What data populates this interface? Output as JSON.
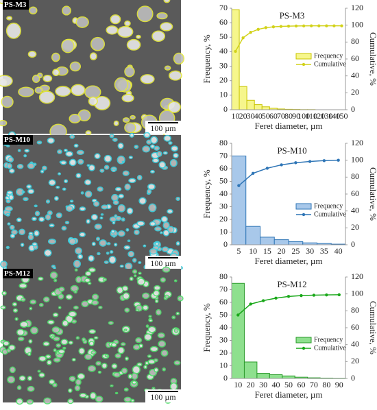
{
  "images": [
    {
      "label": "PS-M3",
      "scale": "100 µm",
      "color": "#e6ea3a"
    },
    {
      "label": "PS-M10",
      "scale": "100 µm",
      "color": "#3ad0e0"
    },
    {
      "label": "PS-M12",
      "scale": "100 µm",
      "color": "#4ee06a"
    }
  ],
  "chart_data": [
    {
      "type": "bar",
      "title": "PS-M3",
      "x_label": "Feret diameter, µm",
      "y_label": "Frequency, %",
      "y2_label": "Cumulative, %",
      "categories": [
        "10",
        "20",
        "30",
        "40",
        "50",
        "60",
        "70",
        "80",
        "90",
        "100",
        "110",
        "120",
        "130",
        "140",
        "150"
      ],
      "series": [
        {
          "name": "Frequency",
          "color": "#f6f68c",
          "edge": "#c8c400",
          "values": [
            69,
            16,
            6.5,
            3.5,
            2,
            1,
            0.5,
            0.3,
            0.2,
            0.1,
            0.1,
            0,
            0,
            0,
            0
          ]
        },
        {
          "name": "Cumulative",
          "color": "#d2d21a",
          "axis": "y2",
          "values": [
            69,
            85,
            91.5,
            95,
            97,
            98,
            98.5,
            98.8,
            99,
            99.1,
            99.2,
            99.2,
            99.2,
            99.2,
            99.2
          ]
        }
      ],
      "ylim": [
        0,
        70
      ],
      "yticks": [
        0,
        10,
        20,
        30,
        40,
        50,
        60,
        70
      ],
      "y2lim": [
        0,
        120
      ],
      "y2ticks": [
        0,
        20,
        40,
        60,
        80,
        100,
        120
      ],
      "legend": "right"
    },
    {
      "type": "bar",
      "title": "PS-M10",
      "x_label": "Feret diameter, µm",
      "y_label": "Frequency, %",
      "y2_label": "Cumulative, %",
      "categories": [
        "5",
        "10",
        "15",
        "20",
        "25",
        "30",
        "35",
        "40"
      ],
      "series": [
        {
          "name": "Frequency",
          "color": "#a8c8ea",
          "edge": "#2e75b6",
          "values": [
            70,
            14.5,
            6,
            4,
            2.5,
            1.5,
            1,
            0.5
          ]
        },
        {
          "name": "Cumulative",
          "color": "#2e75b6",
          "axis": "y2",
          "values": [
            70,
            84.5,
            90.5,
            94.5,
            97,
            98.5,
            99.5,
            100
          ]
        }
      ],
      "ylim": [
        0,
        80
      ],
      "yticks": [
        0,
        10,
        20,
        30,
        40,
        50,
        60,
        70,
        80
      ],
      "y2lim": [
        0,
        120
      ],
      "y2ticks": [
        0,
        20,
        40,
        60,
        80,
        100,
        120
      ],
      "legend": "right"
    },
    {
      "type": "bar",
      "title": "PS-M12",
      "x_label": "Feret diameter, µm",
      "y_label": "Frequency, %",
      "y2_label": "Cumulative, %",
      "categories": [
        "10",
        "20",
        "30",
        "40",
        "50",
        "60",
        "70",
        "80",
        "90"
      ],
      "series": [
        {
          "name": "Frequency",
          "color": "#8ee08e",
          "edge": "#2a9a2a",
          "values": [
            75,
            13,
            4,
            3,
            2,
            1,
            0.5,
            0.3,
            0.2
          ]
        },
        {
          "name": "Cumulative",
          "color": "#1aa81a",
          "axis": "y2",
          "values": [
            75,
            88,
            92,
            95,
            97,
            98,
            98.5,
            98.8,
            99
          ]
        }
      ],
      "ylim": [
        0,
        80
      ],
      "yticks": [
        0,
        10,
        20,
        30,
        40,
        50,
        60,
        70,
        80
      ],
      "y2lim": [
        0,
        120
      ],
      "y2ticks": [
        0,
        20,
        40,
        60,
        80,
        100,
        120
      ],
      "legend": "right"
    }
  ]
}
